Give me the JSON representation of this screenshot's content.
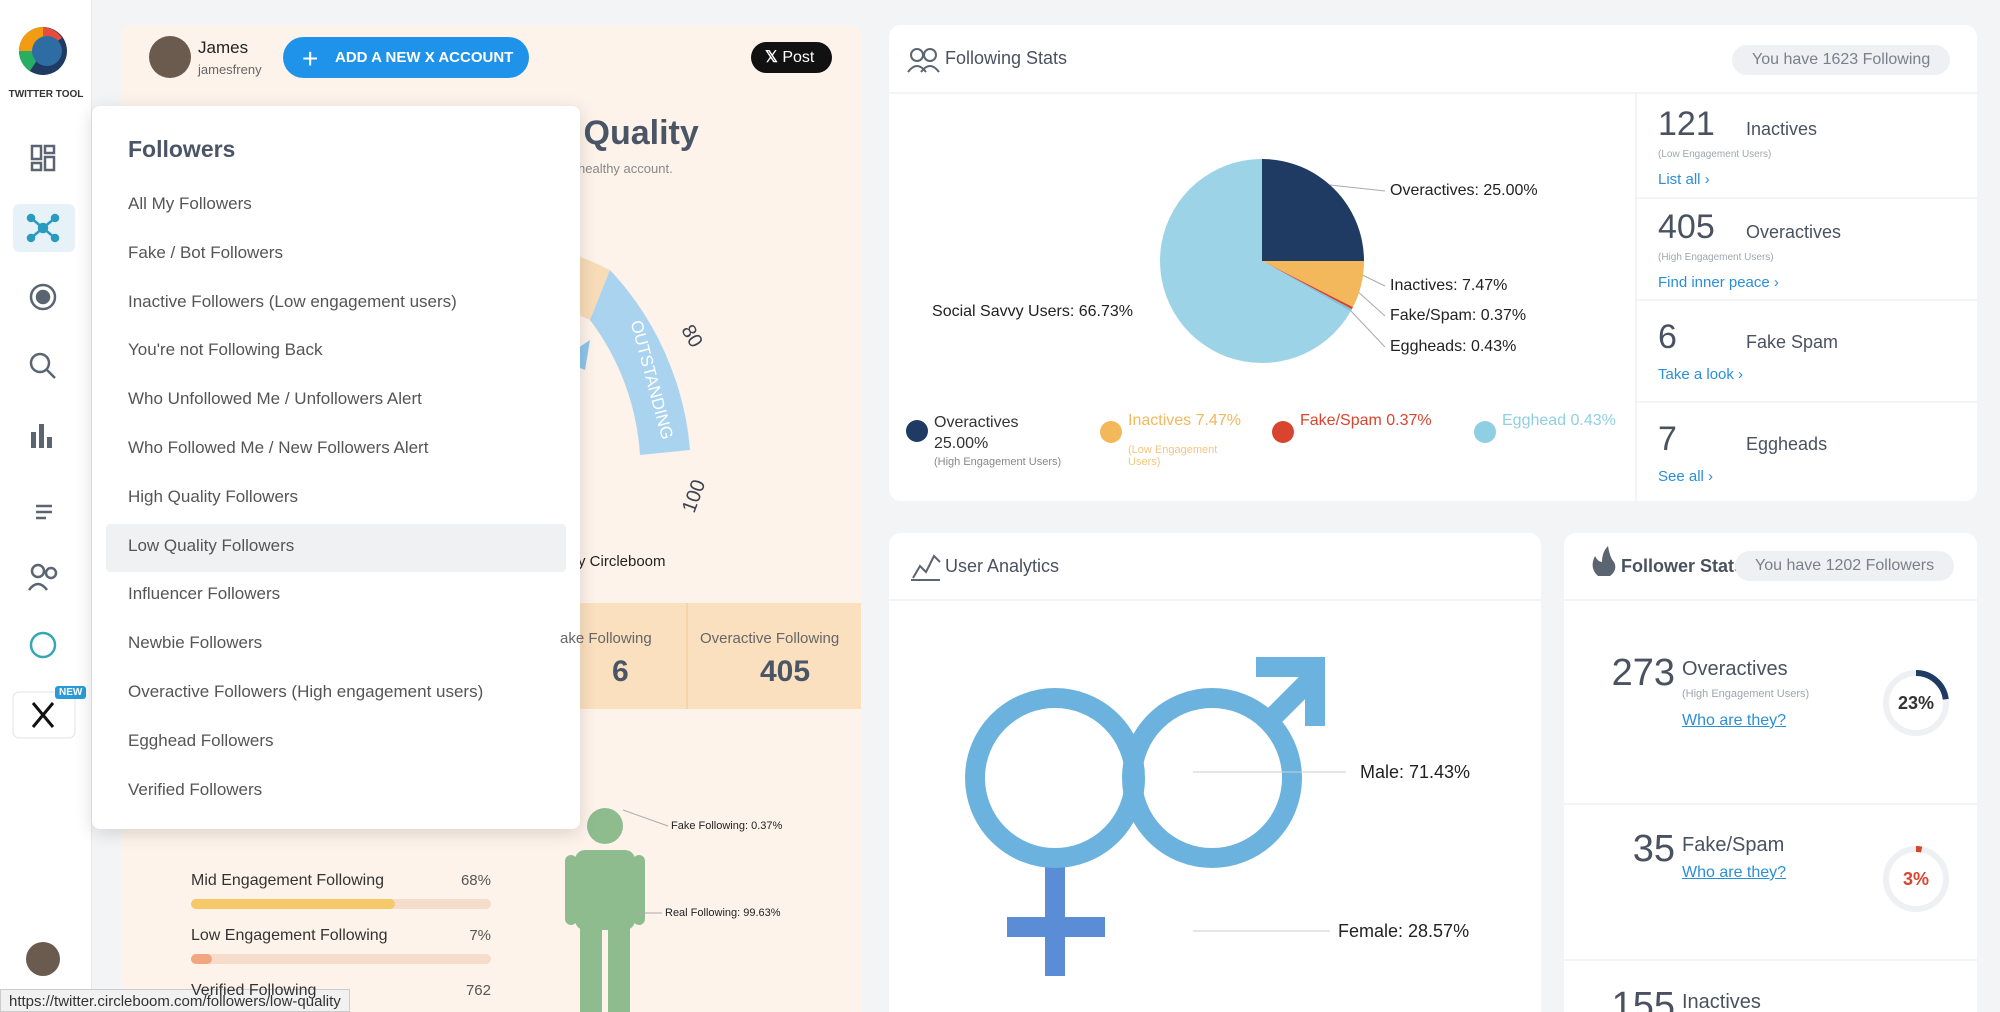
{
  "sidebar": {
    "logo_text": "TWITTER TOOL",
    "new_badge": "NEW"
  },
  "account": {
    "name": "James",
    "handle": "jamesfreny",
    "add_button": "ADD A NEW X ACCOUNT",
    "post_button": "Post"
  },
  "quality_panel": {
    "title_fragment": "nt Quality",
    "subtitle_fragment": "healthy account.",
    "gauge_labels": [
      "80",
      "100"
    ],
    "gauge_band": "OUTSTANDING",
    "credit_fragment": "y Circleboom",
    "stats": [
      {
        "label": "ake Following",
        "value": "6"
      },
      {
        "label": "Overactive Following",
        "value": "405"
      }
    ],
    "bars": [
      {
        "label": "Mid Engagement Following",
        "value": "68%"
      },
      {
        "label": "Low Engagement Following",
        "value": "7%"
      }
    ],
    "verified": {
      "label": "Verified Following",
      "value": "762"
    },
    "figure_labels": [
      "Fake Following: 0.37%",
      "Real Following: 99.63%"
    ]
  },
  "dropdown": {
    "title": "Followers",
    "selected": 7,
    "items": [
      "All My Followers",
      "Fake / Bot Followers",
      "Inactive Followers (Low engagement users)",
      "You're not Following Back",
      "Who Unfollowed Me / Unfollowers Alert",
      "Who Followed Me / New Followers Alert",
      "High Quality Followers",
      "Low Quality Followers",
      "Influencer Followers",
      "Newbie Followers",
      "Overactive Followers (High engagement users)",
      "Egghead Followers",
      "Verified Followers"
    ]
  },
  "following_stats": {
    "title": "Following Stats",
    "badge": "You have 1623 Following",
    "pie": {
      "slices": [
        {
          "label": "Overactives: 25.00%",
          "value": 25,
          "color": "#1f3b63"
        },
        {
          "label": "Inactives: 7.47%",
          "value": 7.47,
          "color": "#f3b75c"
        },
        {
          "label": "Fake/Spam: 0.37%",
          "value": 0.37,
          "color": "#d9442e"
        },
        {
          "label": "Eggheads: 0.43%",
          "value": 0.43,
          "color": "#7fc3dc"
        },
        {
          "label": "Social Savvy Users: 66.73%",
          "value": 66.73,
          "color": "#9dd3e6"
        }
      ]
    },
    "legend": [
      {
        "title": "Overactives 25.00%",
        "note": "(High Engagement Users)",
        "color": "#1f3b63"
      },
      {
        "title": "Inactives 7.47%",
        "note": "(Low Engagement Users)",
        "color": "#f3b75c"
      },
      {
        "title": "Fake/Spam 0.37%",
        "color": "#d9442e"
      },
      {
        "title": "Egghead 0.43%",
        "color": "#8fcfe3"
      }
    ],
    "summary": [
      {
        "count": "121",
        "label": "Inactives",
        "note": "(Low Engagement Users)",
        "link": "List all ›"
      },
      {
        "count": "405",
        "label": "Overactives",
        "note": "(High Engagement Users)",
        "link": "Find inner peace ›"
      },
      {
        "count": "6",
        "label": "Fake Spam",
        "link": "Take a look ›"
      },
      {
        "count": "7",
        "label": "Eggheads",
        "link": "See all ›"
      }
    ]
  },
  "user_analytics": {
    "title": "User Analytics",
    "male": "Male: 71.43%",
    "female": "Female: 28.57%"
  },
  "follower_stats": {
    "title": "Follower Stats",
    "badge": "You have 1202 Followers",
    "rows": [
      {
        "count": "273",
        "label": "Overactives",
        "note": "(High Engagement Users)",
        "link": "Who are they?",
        "percent": "23%",
        "color": "#1f3b63"
      },
      {
        "count": "35",
        "label": "Fake/Spam",
        "link": "Who are they?",
        "percent": "3%",
        "color": "#d9442e"
      },
      {
        "count": "155",
        "label": "Inactives"
      }
    ]
  },
  "status_bar": "https://twitter.circleboom.com/followers/low-quality"
}
